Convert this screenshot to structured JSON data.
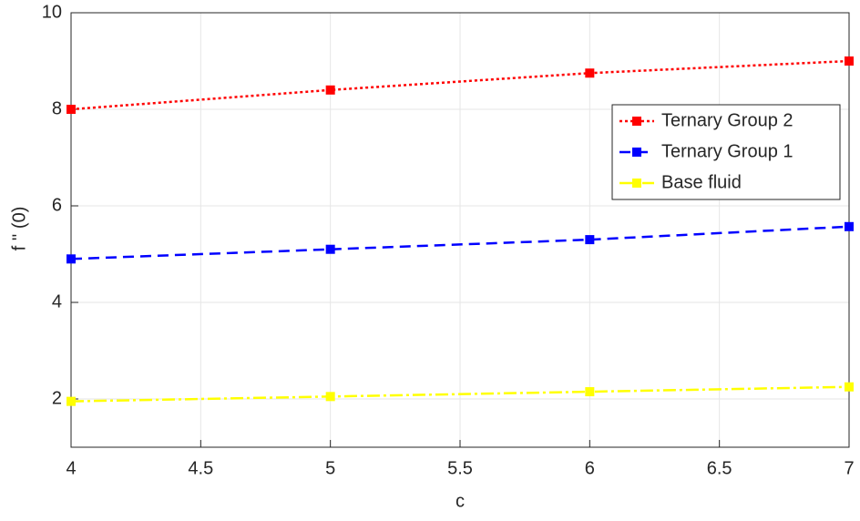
{
  "chart_data": {
    "type": "line",
    "x_label": "c",
    "y_label": "f '' (0)",
    "x": [
      4,
      5,
      6,
      7
    ],
    "series": [
      {
        "name": "Ternary Group 2",
        "color": "#ff0000",
        "style": "dotted",
        "values": [
          8.0,
          8.4,
          8.75,
          9.0
        ]
      },
      {
        "name": "Ternary Group 1",
        "color": "#0000ff",
        "style": "dashed",
        "values": [
          4.9,
          5.1,
          5.3,
          5.57
        ]
      },
      {
        "name": "Base fluid",
        "color": "#ffff00",
        "style": "dashdot",
        "values": [
          1.95,
          2.05,
          2.15,
          2.25
        ]
      }
    ],
    "xlim": [
      4,
      7
    ],
    "xticks": [
      4,
      4.5,
      5,
      5.5,
      6,
      6.5,
      7
    ],
    "ylim": [
      1,
      10
    ],
    "yticks": [
      2,
      4,
      6,
      8,
      10
    ],
    "grid": true,
    "legend": "upper right"
  }
}
